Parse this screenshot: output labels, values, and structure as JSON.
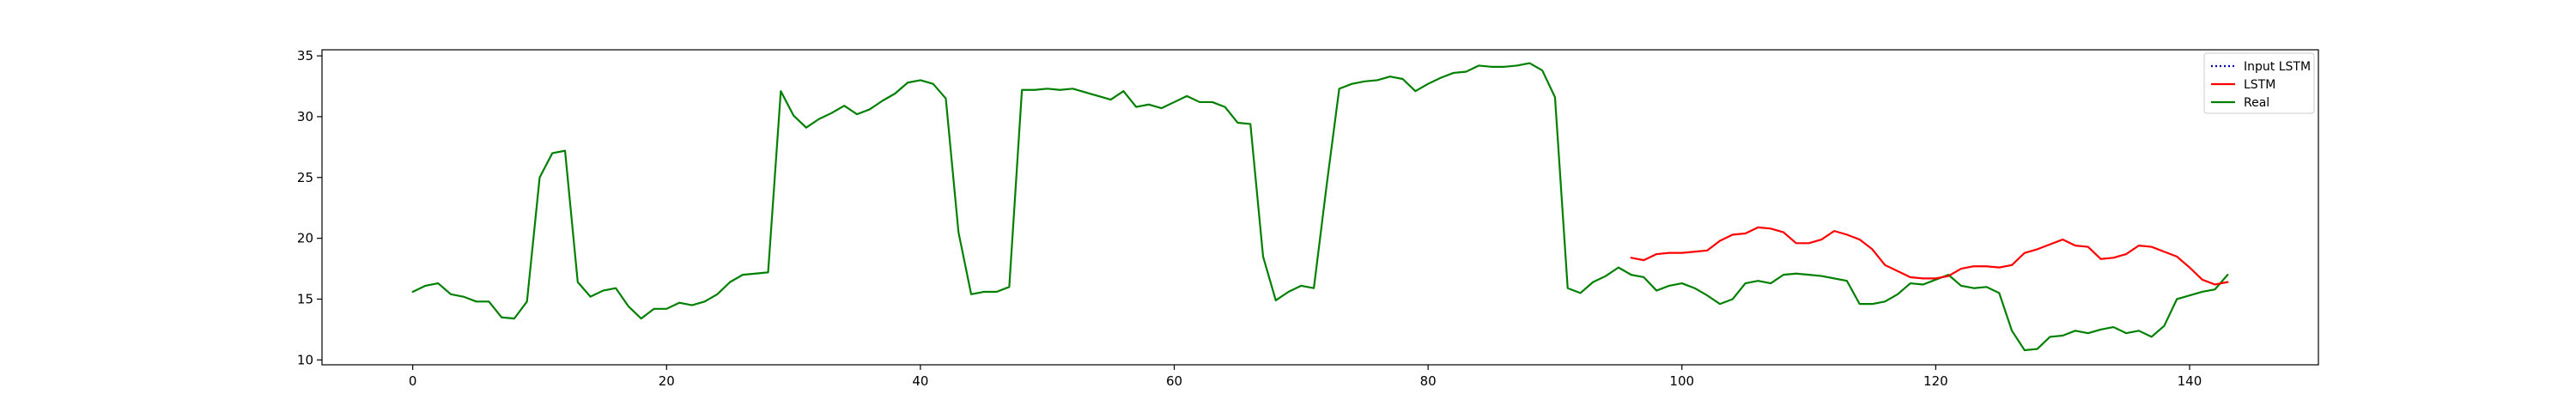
{
  "chart_data": {
    "type": "line",
    "title": "",
    "xlabel": "",
    "ylabel": "",
    "xlim": [
      -7.15,
      150.15
    ],
    "ylim": [
      9.6,
      35.5
    ],
    "xticks": [
      0,
      20,
      40,
      60,
      80,
      100,
      120,
      140
    ],
    "yticks": [
      10,
      15,
      20,
      25,
      30,
      35
    ],
    "grid": false,
    "legend_position": "top-right",
    "series": [
      {
        "name": "Input LSTM",
        "color": "#0000aa",
        "style": "dotted",
        "x": [],
        "y": []
      },
      {
        "name": "LSTM",
        "color": "#ff0000",
        "style": "solid",
        "x": [
          96,
          97,
          98,
          99,
          100,
          101,
          102,
          103,
          104,
          105,
          106,
          107,
          108,
          109,
          110,
          111,
          112,
          113,
          114,
          115,
          116,
          117,
          118,
          119,
          120,
          121,
          122,
          123,
          124,
          125,
          126,
          127,
          128,
          129,
          130,
          131,
          132,
          133,
          134,
          135,
          136,
          137,
          138,
          139,
          140,
          141,
          142,
          143
        ],
        "y": [
          18.4,
          18.2,
          18.7,
          18.8,
          18.8,
          18.9,
          19.0,
          19.8,
          20.3,
          20.4,
          20.9,
          20.8,
          20.5,
          19.6,
          19.6,
          19.9,
          20.6,
          20.3,
          19.9,
          19.1,
          17.8,
          17.3,
          16.8,
          16.7,
          16.7,
          16.9,
          17.5,
          17.7,
          17.7,
          17.6,
          17.8,
          18.8,
          19.1,
          19.5,
          19.9,
          19.4,
          19.3,
          18.3,
          18.4,
          18.7,
          19.4,
          19.3,
          18.9,
          18.5,
          17.6,
          16.6,
          16.2,
          16.4
        ]
      },
      {
        "name": "Real",
        "color": "#008000",
        "style": "solid",
        "x": [
          0,
          1,
          2,
          3,
          4,
          5,
          6,
          7,
          8,
          9,
          10,
          11,
          12,
          13,
          14,
          15,
          16,
          17,
          18,
          19,
          20,
          21,
          22,
          23,
          24,
          25,
          26,
          27,
          28,
          29,
          30,
          31,
          32,
          33,
          34,
          35,
          36,
          37,
          38,
          39,
          40,
          41,
          42,
          43,
          44,
          45,
          46,
          47,
          48,
          49,
          50,
          51,
          52,
          53,
          54,
          55,
          56,
          57,
          58,
          59,
          60,
          61,
          62,
          63,
          64,
          65,
          66,
          67,
          68,
          69,
          70,
          71,
          72,
          73,
          74,
          75,
          76,
          77,
          78,
          79,
          80,
          81,
          82,
          83,
          84,
          85,
          86,
          87,
          88,
          89,
          90,
          91,
          92,
          93,
          94,
          95,
          96,
          97,
          98,
          99,
          100,
          101,
          102,
          103,
          104,
          105,
          106,
          107,
          108,
          109,
          110,
          111,
          112,
          113,
          114,
          115,
          116,
          117,
          118,
          119,
          120,
          121,
          122,
          123,
          124,
          125,
          126,
          127,
          128,
          129,
          130,
          131,
          132,
          133,
          134,
          135,
          136,
          137,
          138,
          139,
          140,
          141,
          142,
          143
        ],
        "y": [
          15.6,
          16.1,
          16.3,
          15.4,
          15.2,
          14.8,
          14.8,
          13.5,
          13.4,
          14.8,
          25.0,
          27.0,
          27.2,
          16.4,
          15.2,
          15.7,
          15.9,
          14.4,
          13.4,
          14.2,
          14.2,
          14.7,
          14.5,
          14.8,
          15.4,
          16.4,
          17.0,
          17.1,
          17.2,
          32.1,
          30.1,
          29.1,
          29.8,
          30.3,
          30.9,
          30.2,
          30.6,
          31.3,
          31.9,
          32.8,
          33.0,
          32.7,
          31.5,
          20.5,
          15.4,
          15.6,
          15.6,
          16.0,
          32.2,
          32.2,
          32.3,
          32.2,
          32.3,
          32.0,
          31.7,
          31.4,
          32.1,
          30.8,
          31.0,
          30.7,
          31.2,
          31.7,
          31.2,
          31.2,
          30.8,
          29.5,
          29.4,
          18.5,
          14.9,
          15.6,
          16.1,
          15.9,
          24.3,
          32.3,
          32.7,
          32.9,
          33.0,
          33.3,
          33.1,
          32.1,
          32.7,
          33.2,
          33.6,
          33.7,
          34.2,
          34.1,
          34.1,
          34.2,
          34.4,
          33.8,
          31.6,
          15.9,
          15.5,
          16.4,
          16.9,
          17.6,
          17.0,
          16.8,
          15.7,
          16.1,
          16.3,
          15.9,
          15.3,
          14.6,
          15.0,
          16.3,
          16.5,
          16.3,
          17.0,
          17.1,
          17.0,
          16.9,
          16.7,
          16.5,
          14.6,
          14.6,
          14.8,
          15.4,
          16.3,
          16.2,
          16.6,
          17.0,
          16.1,
          15.9,
          16.0,
          15.5,
          12.4,
          10.8,
          10.9,
          11.9,
          12.0,
          12.4,
          12.2,
          12.5,
          12.7,
          12.2,
          12.4,
          11.9,
          12.8,
          15.0,
          15.3,
          15.6,
          15.8,
          17.0
        ]
      }
    ]
  }
}
